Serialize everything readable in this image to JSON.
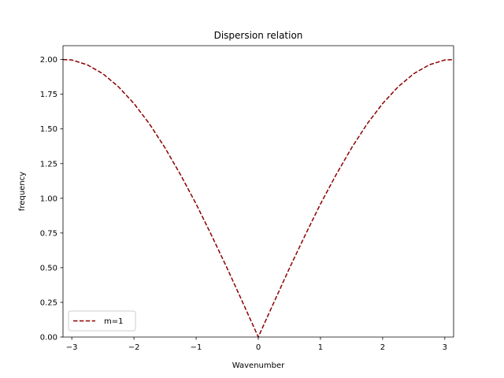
{
  "chart_data": {
    "type": "line",
    "title": "Dispersion relation",
    "xlabel": "Wavenumber",
    "ylabel": "frequency",
    "xlim": [
      -3.14159,
      3.14159
    ],
    "ylim": [
      0,
      2.1
    ],
    "xticks": [
      -3,
      -2,
      -1,
      0,
      1,
      2,
      3
    ],
    "xtick_labels": [
      "−3",
      "−2",
      "−1",
      "0",
      "1",
      "2",
      "3"
    ],
    "yticks": [
      0,
      0.25,
      0.5,
      0.75,
      1.0,
      1.25,
      1.5,
      1.75,
      2.0
    ],
    "ytick_labels": [
      "0.00",
      "0.25",
      "0.50",
      "0.75",
      "1.00",
      "1.25",
      "1.50",
      "1.75",
      "2.00"
    ],
    "grid": false,
    "legend_position": "lower-left",
    "series": [
      {
        "name": "m=1",
        "color": "#8b0000",
        "style": "dashed",
        "x": [
          -3.142,
          -3.0,
          -2.75,
          -2.5,
          -2.25,
          -2.0,
          -1.75,
          -1.5,
          -1.25,
          -1.0,
          -0.75,
          -0.5,
          -0.25,
          0.0,
          0.25,
          0.5,
          0.75,
          1.0,
          1.25,
          1.5,
          1.75,
          2.0,
          2.25,
          2.5,
          2.75,
          3.0,
          3.142
        ],
        "y": [
          2.0,
          1.997,
          1.962,
          1.898,
          1.804,
          1.683,
          1.536,
          1.363,
          1.169,
          0.959,
          0.731,
          0.495,
          0.249,
          0.0,
          0.249,
          0.495,
          0.731,
          0.959,
          1.169,
          1.363,
          1.536,
          1.683,
          1.804,
          1.898,
          1.962,
          1.997,
          2.0
        ]
      }
    ]
  }
}
